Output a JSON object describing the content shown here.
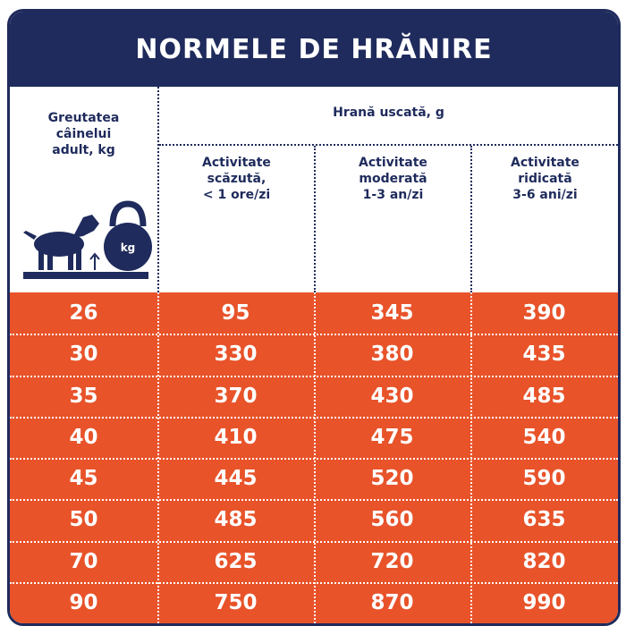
{
  "title": "NORMELE DE HRĂNIRE",
  "header": {
    "weight": [
      "Greutatea",
      "câinelui",
      "adult, kg"
    ],
    "icon_label": "kg",
    "group": "Hrană uscată, g",
    "columns": [
      [
        "Activitate",
        "scăzută,",
        "< 1 ore/zi"
      ],
      [
        "Activitate",
        "moderată",
        "1-3 an/zi"
      ],
      [
        "Activitate",
        "ridicată",
        "3-6 ani/zi"
      ]
    ]
  },
  "table": {
    "rows": [
      [
        26,
        95,
        345,
        390
      ],
      [
        30,
        330,
        380,
        435
      ],
      [
        35,
        370,
        430,
        485
      ],
      [
        40,
        410,
        475,
        540
      ],
      [
        45,
        445,
        520,
        590
      ],
      [
        50,
        485,
        560,
        635
      ],
      [
        70,
        625,
        720,
        820
      ],
      [
        90,
        750,
        870,
        990
      ]
    ]
  }
}
